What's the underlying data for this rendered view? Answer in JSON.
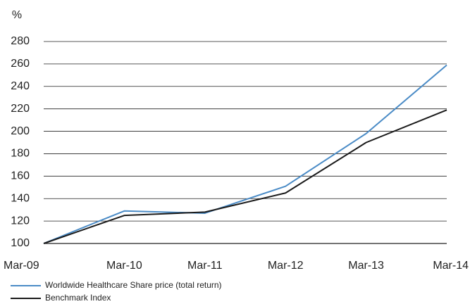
{
  "chart_data": {
    "type": "line",
    "y_label": "%",
    "categories": [
      "Mar-09",
      "Mar-10",
      "Mar-11",
      "Mar-12",
      "Mar-13",
      "Mar-14"
    ],
    "series": [
      {
        "name": "Worldwide Healthcare Share price (total return)",
        "color": "#4a8bc6",
        "values": [
          100,
          129,
          127,
          151,
          198,
          259
        ]
      },
      {
        "name": "Benchmark Index",
        "color": "#1a1a1a",
        "values": [
          100,
          125,
          128,
          145,
          190,
          219
        ]
      }
    ],
    "ylim": [
      100,
      280
    ],
    "yticks": [
      100,
      120,
      140,
      160,
      180,
      200,
      220,
      240,
      260,
      280
    ],
    "grid": true
  }
}
